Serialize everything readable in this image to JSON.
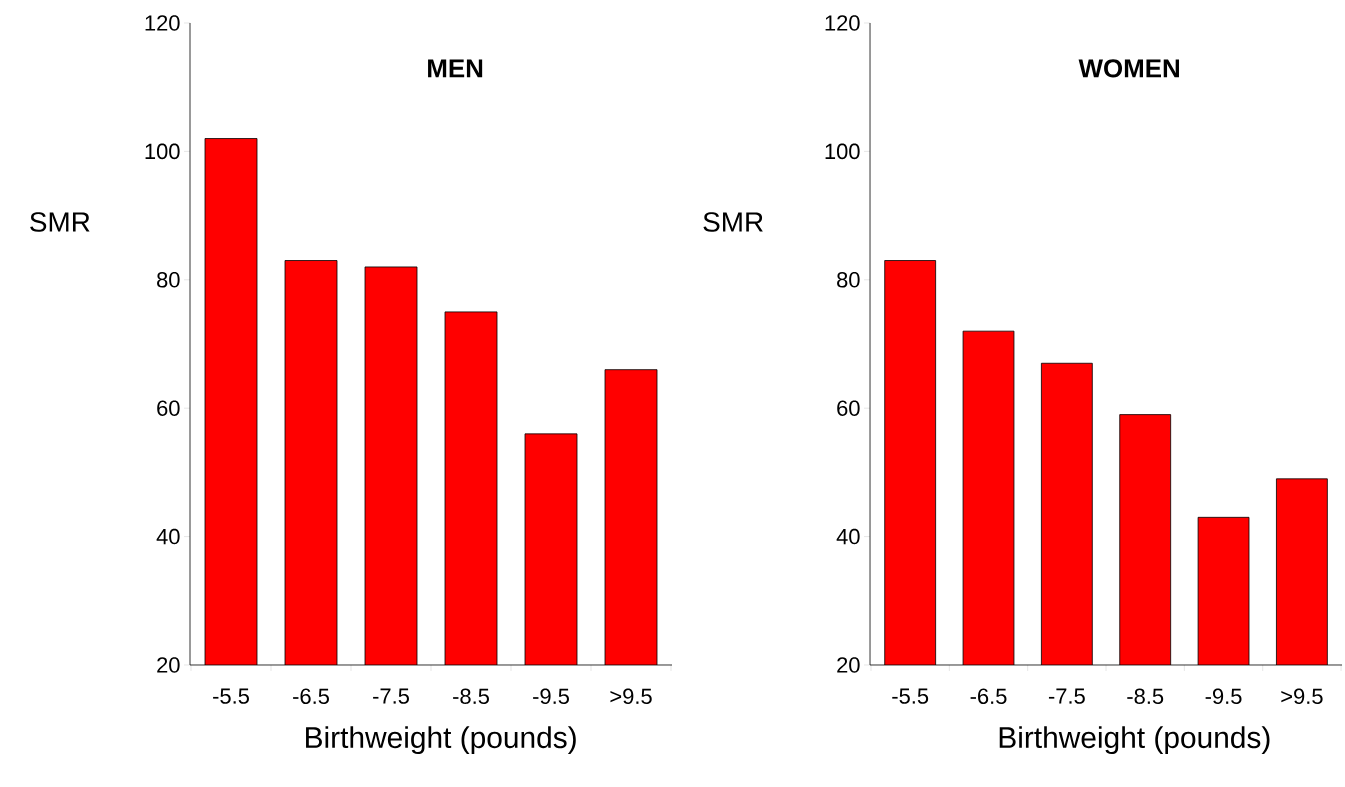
{
  "chart_data": [
    {
      "type": "bar",
      "title": "**MEN**",
      "xlabel": "Birthweight (pounds)",
      "ylabel": "SMR",
      "categories": [
        "-5.5",
        "-6.5",
        "-7.5",
        "-8.5",
        "-9.5",
        ">9.5"
      ],
      "values": [
        102,
        83,
        82,
        75,
        56,
        66
      ],
      "color": "#ff0000",
      "ylim": [
        20,
        120
      ],
      "yticks": [
        20,
        40,
        60,
        80,
        100,
        120
      ]
    },
    {
      "type": "bar",
      "title": "**WOMEN**",
      "xlabel": "Birthweight (pounds)",
      "ylabel": "SMR",
      "categories": [
        "-5.5",
        "-6.5",
        "-7.5",
        "-8.5",
        "-9.5",
        ">9.5"
      ],
      "values": [
        83,
        72,
        67,
        59,
        43,
        49
      ],
      "color": "#ff0000",
      "ylim": [
        20,
        120
      ],
      "yticks": [
        20,
        40,
        60,
        80,
        100,
        120
      ]
    }
  ]
}
